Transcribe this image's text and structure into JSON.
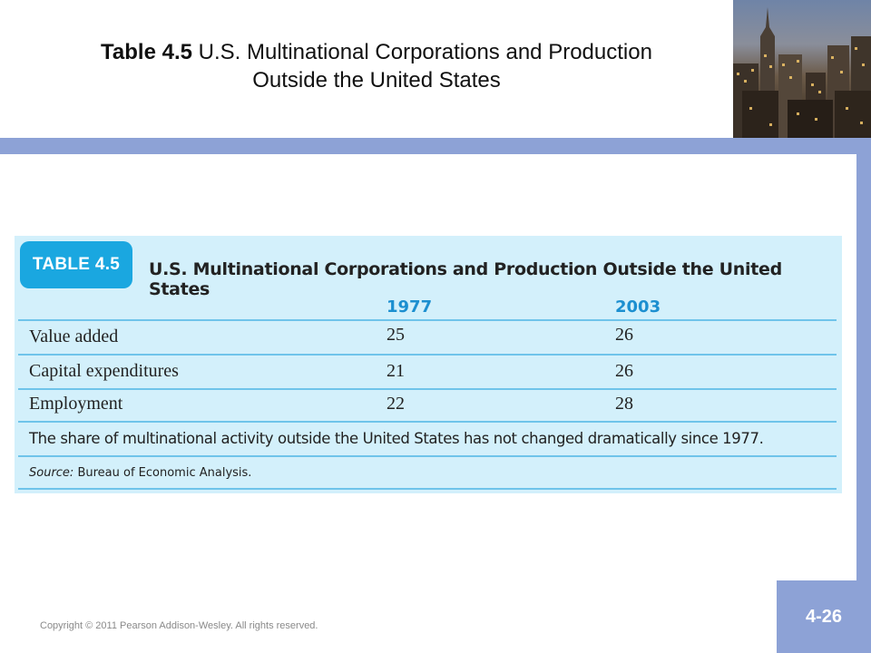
{
  "slide": {
    "title_bold": "Table 4.5",
    "title_line1_rest": " U.S. Multinational Corporations and Production",
    "title_line2": "Outside the United States",
    "copyright": "Copyright © 2011 Pearson Addison-Wesley. All rights reserved.",
    "page_number": "4-26"
  },
  "table": {
    "tag": "TABLE 4.5",
    "caption": "U.S. Multinational Corporations and Production Outside the United States",
    "columns": [
      "1977",
      "2003"
    ],
    "rows": [
      {
        "label": "Value added",
        "values": [
          "25",
          "26"
        ]
      },
      {
        "label": "Capital expenditures",
        "values": [
          "21",
          "26"
        ]
      },
      {
        "label": "Employment",
        "values": [
          "22",
          "28"
        ]
      }
    ],
    "note": "The share of multinational activity outside the United States has not changed dramatically since 1977.",
    "source_label": "Source:",
    "source_text": " Bureau of Economic Analysis."
  },
  "colors": {
    "accent_band": "#8da2d6",
    "table_background": "#d3f0fb",
    "table_tag": "#1aa7e0",
    "column_heading": "#1c8fd0"
  }
}
